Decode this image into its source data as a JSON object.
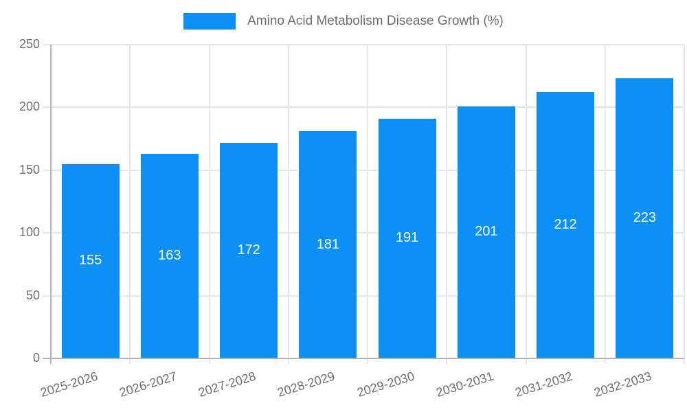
{
  "chart_data": {
    "type": "bar",
    "title": "Amino Acid Metabolism Disease Growth (%)",
    "legend_position": "top-center",
    "categories": [
      "2025-2026",
      "2026-2027",
      "2027-2028",
      "2028-2029",
      "2029-2030",
      "2030-2031",
      "2031-2032",
      "2032-2033"
    ],
    "values": [
      155,
      163,
      172,
      181,
      191,
      201,
      212,
      223
    ],
    "xlabel": "",
    "ylabel": "",
    "ylim": [
      0,
      250
    ],
    "yticks": [
      0,
      50,
      100,
      150,
      200,
      250
    ],
    "grid": true,
    "bar_labels_inside": true,
    "colors": {
      "bar": "#0d90f5",
      "grid": "#e6e6e6",
      "axis": "#b3b3b3",
      "tick_text": "#6e6e6e",
      "bar_label": "#ffffff",
      "background": "#ffffff"
    }
  }
}
